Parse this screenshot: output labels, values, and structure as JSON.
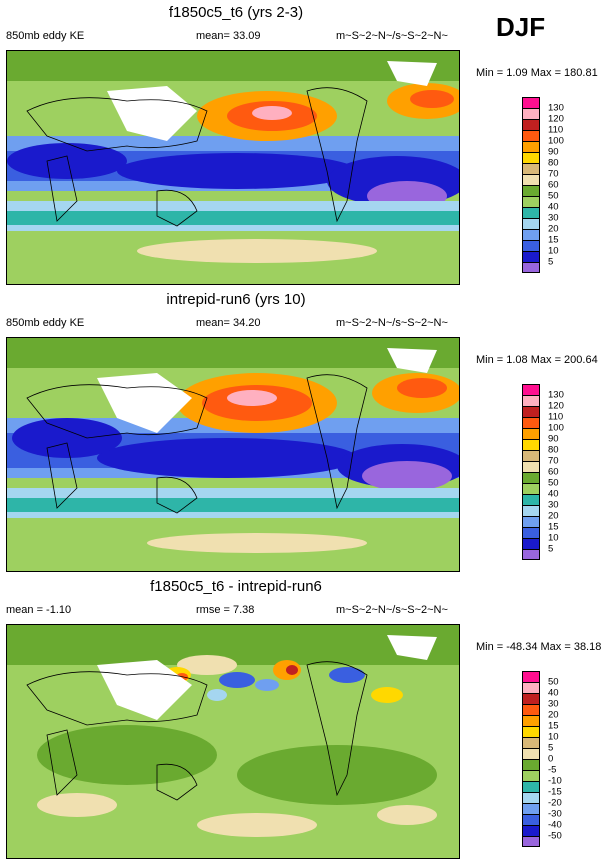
{
  "season": "DJF",
  "palette": {
    "kept_note": "",
    "colors_ke": [
      "#9966dd",
      "#1a1acc",
      "#3a5fe0",
      "#6f9ff0",
      "#a5d6f0",
      "#2eb5a8",
      "#9ed060",
      "#6aaa30",
      "#f0e0b0",
      "#d8b878",
      "#ffd800",
      "#ffa000",
      "#ff5a10",
      "#c02020",
      "#ffb0c0",
      "#ff1090"
    ],
    "colors_diff": [
      "#9966dd",
      "#1a1acc",
      "#3a5fe0",
      "#6f9ff0",
      "#a5d6f0",
      "#2eb5a8",
      "#9ed060",
      "#6aaa30",
      "#f0e0b0",
      "#d8b878",
      "#ffd800",
      "#ffa000",
      "#ff5a10",
      "#c02020",
      "#ffb0c0",
      "#ff1090"
    ]
  },
  "panels": [
    {
      "title": "f1850c5_t6 (yrs 2-3)",
      "left_label": "850mb eddy KE",
      "mid_label": "mean=  33.09",
      "units": "m~S~2~N~/s~S~2~N~",
      "minmax": "Min =   1.09 Max = 180.81",
      "ticks": [
        "130",
        "120",
        "110",
        "100",
        "90",
        "80",
        "70",
        "60",
        "50",
        "40",
        "30",
        "20",
        "15",
        "10",
        "5"
      ]
    },
    {
      "title": "intrepid-run6 (yrs 10)",
      "left_label": "850mb eddy KE",
      "mid_label": "mean=  34.20",
      "units": "m~S~2~N~/s~S~2~N~",
      "minmax": "Min =   1.08 Max = 200.64",
      "ticks": [
        "130",
        "120",
        "110",
        "100",
        "90",
        "80",
        "70",
        "60",
        "50",
        "40",
        "30",
        "20",
        "15",
        "10",
        "5"
      ]
    },
    {
      "title": "f1850c5_t6 - intrepid-run6",
      "left_label": "mean =  -1.10",
      "mid_label": "rmse =   7.38",
      "units": "m~S~2~N~/s~S~2~N~",
      "minmax": "Min = -48.34 Max =  38.18",
      "ticks": [
        "50",
        "40",
        "30",
        "20",
        "15",
        "10",
        "5",
        "0",
        "-5",
        "-10",
        "-15",
        "-20",
        "-30",
        "-40",
        "-50"
      ]
    }
  ]
}
